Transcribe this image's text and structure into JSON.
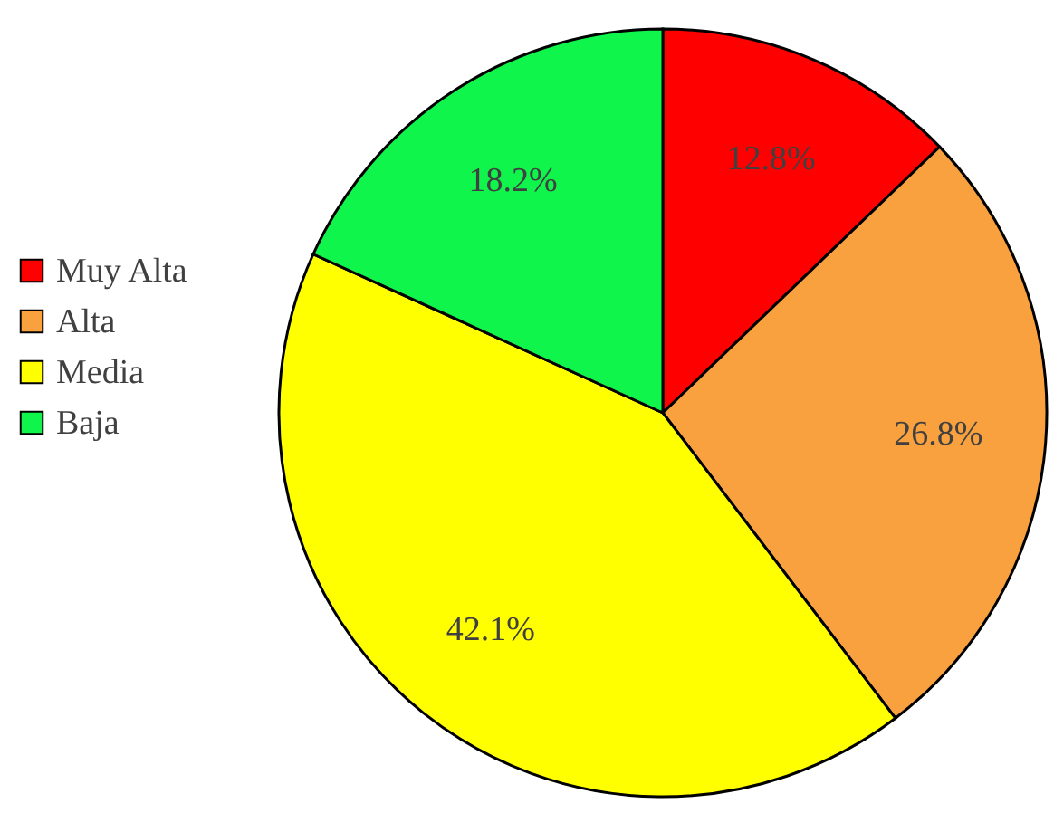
{
  "chart_data": {
    "type": "pie",
    "categories": [
      "Muy Alta",
      "Alta",
      "Media",
      "Baja"
    ],
    "values": [
      12.8,
      26.8,
      42.1,
      18.2
    ],
    "colors": [
      "#ff0000",
      "#f9a13f",
      "#ffff00",
      "#10f54c"
    ],
    "value_labels": [
      "12.8%",
      "26.8%",
      "42.1%",
      "18.2%"
    ],
    "legend": "left"
  }
}
